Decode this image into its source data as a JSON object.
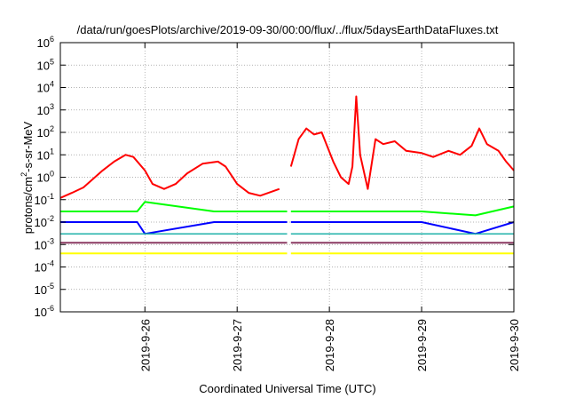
{
  "chart_data": {
    "type": "line",
    "title": "/data/run/goesPlots/archive/2019-09-30/00:00/flux/../flux/5daysEarthDataFluxes.txt",
    "xlabel": "Coordinated Universal Time (UTC)",
    "ylabel": {
      "base": "protons/cm",
      "sup": "2",
      "rest": "-s-sr-MeV"
    },
    "y_scale": "log",
    "ylim": [
      1e-06,
      1000000.0
    ],
    "y_ticks": [
      {
        "value": -6,
        "base": "10",
        "exp": "-6"
      },
      {
        "value": -5,
        "base": "10",
        "exp": "-5"
      },
      {
        "value": -4,
        "base": "10",
        "exp": "-4"
      },
      {
        "value": -3,
        "base": "10",
        "exp": "-3"
      },
      {
        "value": -2,
        "base": "10",
        "exp": "-2"
      },
      {
        "value": -1,
        "base": "10",
        "exp": "-1"
      },
      {
        "value": 0,
        "base": "10",
        "exp": "0"
      },
      {
        "value": 1,
        "base": "10",
        "exp": "1"
      },
      {
        "value": 2,
        "base": "10",
        "exp": "2"
      },
      {
        "value": 3,
        "base": "10",
        "exp": "3"
      },
      {
        "value": 4,
        "base": "10",
        "exp": "4"
      },
      {
        "value": 5,
        "base": "10",
        "exp": "5"
      },
      {
        "value": 6,
        "base": "10",
        "exp": "6"
      }
    ],
    "xlim": [
      "2019-09-25 02:00",
      "2019-09-30 00:00"
    ],
    "x_ticks": [
      {
        "value": "2019-09-26 00:00",
        "label": "2019-9-26"
      },
      {
        "value": "2019-09-27 00:00",
        "label": "2019-9-27"
      },
      {
        "value": "2019-09-28 00:00",
        "label": "2019-9-28"
      },
      {
        "value": "2019-09-29 00:00",
        "label": "2019-9-29"
      },
      {
        "value": "2019-09-30 00:00",
        "label": "2019-9-30"
      }
    ],
    "grid": true,
    "series": [
      {
        "color": "#ff0000",
        "width": 2,
        "points": [
          [
            "2019-09-25 02:00",
            0.12
          ],
          [
            "2019-09-25 05:00",
            0.2
          ],
          [
            "2019-09-25 08:00",
            0.35
          ],
          [
            "2019-09-25 10:00",
            0.7
          ],
          [
            "2019-09-25 13:00",
            2.0
          ],
          [
            "2019-09-25 16:00",
            5.0
          ],
          [
            "2019-09-25 19:00",
            10
          ],
          [
            "2019-09-25 21:00",
            8
          ],
          [
            "2019-09-26 00:00",
            2.0
          ],
          [
            "2019-09-26 02:00",
            0.5
          ],
          [
            "2019-09-26 05:00",
            0.3
          ],
          [
            "2019-09-26 08:00",
            0.5
          ],
          [
            "2019-09-26 11:00",
            1.5
          ],
          [
            "2019-09-26 15:00",
            4.0
          ],
          [
            "2019-09-26 19:00",
            5.0
          ],
          [
            "2019-09-26 21:00",
            3.0
          ],
          [
            "2019-09-27 00:00",
            0.5
          ],
          [
            "2019-09-27 03:00",
            0.2
          ],
          [
            "2019-09-27 06:00",
            0.15
          ],
          [
            "2019-09-27 11:00",
            0.3
          ],
          [
            "2019-09-27 13:30",
            null
          ],
          [
            "2019-09-27 14:00",
            3.0
          ],
          [
            "2019-09-27 16:00",
            50
          ],
          [
            "2019-09-27 18:00",
            150
          ],
          [
            "2019-09-27 20:00",
            80
          ],
          [
            "2019-09-27 22:00",
            100
          ],
          [
            "2019-09-28 01:00",
            5
          ],
          [
            "2019-09-28 03:00",
            1
          ],
          [
            "2019-09-28 05:00",
            0.5
          ],
          [
            "2019-09-28 06:00",
            3
          ],
          [
            "2019-09-28 07:00",
            4000
          ],
          [
            "2019-09-28 08:00",
            10
          ],
          [
            "2019-09-28 10:00",
            0.3
          ],
          [
            "2019-09-28 12:00",
            50
          ],
          [
            "2019-09-28 14:00",
            30
          ],
          [
            "2019-09-28 17:00",
            40
          ],
          [
            "2019-09-28 20:00",
            15
          ],
          [
            "2019-09-29 00:00",
            12
          ],
          [
            "2019-09-29 03:00",
            8
          ],
          [
            "2019-09-29 07:00",
            15
          ],
          [
            "2019-09-29 10:00",
            10
          ],
          [
            "2019-09-29 13:00",
            25
          ],
          [
            "2019-09-29 15:00",
            150
          ],
          [
            "2019-09-29 17:00",
            30
          ],
          [
            "2019-09-29 20:00",
            15
          ],
          [
            "2019-09-29 22:00",
            5
          ],
          [
            "2019-09-30 00:00",
            2
          ]
        ]
      },
      {
        "color": "#00ff00",
        "width": 2,
        "points": [
          [
            "2019-09-25 02:00",
            0.03
          ],
          [
            "2019-09-25 14:00",
            0.03
          ],
          [
            "2019-09-25 22:00",
            0.03
          ],
          [
            "2019-09-26 00:00",
            0.08
          ],
          [
            "2019-09-26 18:00",
            0.03
          ],
          [
            "2019-09-27 13:00",
            0.03
          ],
          [
            "2019-09-27 13:30",
            null
          ],
          [
            "2019-09-27 14:00",
            0.03
          ],
          [
            "2019-09-28 12:00",
            0.03
          ],
          [
            "2019-09-29 00:00",
            0.03
          ],
          [
            "2019-09-29 14:00",
            0.02
          ],
          [
            "2019-09-30 00:00",
            0.05
          ]
        ]
      },
      {
        "color": "#0000ff",
        "width": 2,
        "points": [
          [
            "2019-09-25 02:00",
            0.01
          ],
          [
            "2019-09-25 14:00",
            0.01
          ],
          [
            "2019-09-25 22:00",
            0.01
          ],
          [
            "2019-09-26 00:00",
            0.003
          ],
          [
            "2019-09-26 18:00",
            0.01
          ],
          [
            "2019-09-27 13:00",
            0.01
          ],
          [
            "2019-09-27 13:30",
            null
          ],
          [
            "2019-09-27 14:00",
            0.01
          ],
          [
            "2019-09-28 12:00",
            0.01
          ],
          [
            "2019-09-29 00:00",
            0.01
          ],
          [
            "2019-09-29 14:00",
            0.003
          ],
          [
            "2019-09-30 00:00",
            0.01
          ]
        ]
      },
      {
        "color": "#20b2aa",
        "width": 1.5,
        "points": [
          [
            "2019-09-25 02:00",
            0.003
          ],
          [
            "2019-09-26 00:00",
            0.003
          ],
          [
            "2019-09-27 13:00",
            0.003
          ],
          [
            "2019-09-27 13:30",
            null
          ],
          [
            "2019-09-27 14:00",
            0.003
          ],
          [
            "2019-09-29 00:00",
            0.003
          ],
          [
            "2019-09-30 00:00",
            0.003
          ]
        ]
      },
      {
        "color": "#8b3a62",
        "width": 2,
        "points": [
          [
            "2019-09-25 02:00",
            0.0012
          ],
          [
            "2019-09-26 00:00",
            0.0012
          ],
          [
            "2019-09-27 13:00",
            0.0012
          ],
          [
            "2019-09-27 13:30",
            null
          ],
          [
            "2019-09-27 14:00",
            0.0012
          ],
          [
            "2019-09-29 00:00",
            0.0012
          ],
          [
            "2019-09-30 00:00",
            0.0012
          ]
        ]
      },
      {
        "color": "#ffff00",
        "width": 2,
        "points": [
          [
            "2019-09-25 02:00",
            0.0004
          ],
          [
            "2019-09-26 00:00",
            0.0004
          ],
          [
            "2019-09-27 13:00",
            0.0004
          ],
          [
            "2019-09-27 13:30",
            null
          ],
          [
            "2019-09-27 14:00",
            0.0004
          ],
          [
            "2019-09-29 00:00",
            0.0004
          ],
          [
            "2019-09-30 00:00",
            0.0004
          ]
        ]
      }
    ]
  }
}
